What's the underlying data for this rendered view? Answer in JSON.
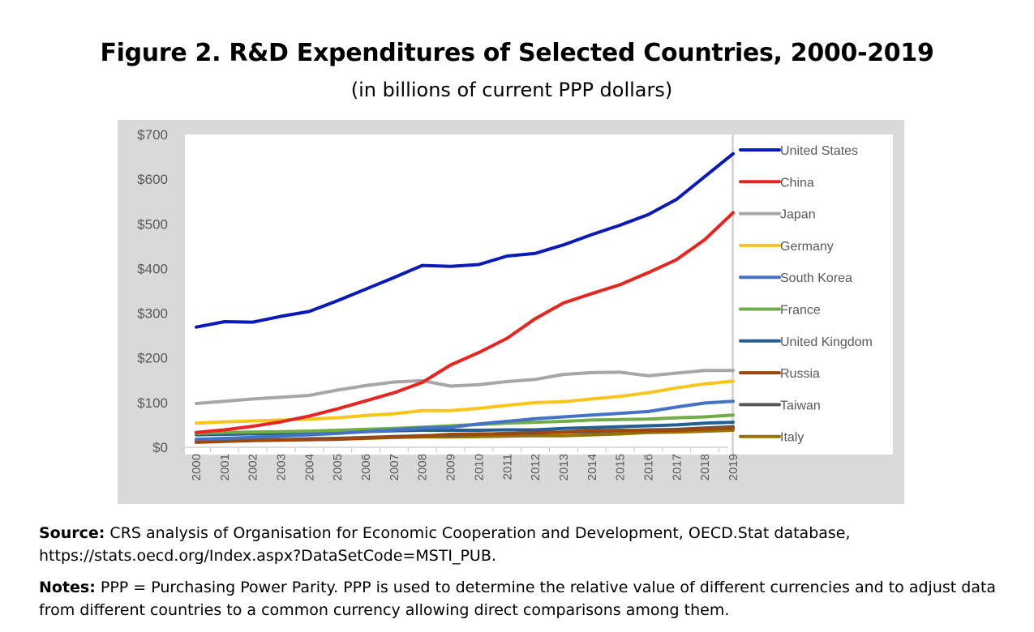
{
  "title": "Figure 2. R&D Expenditures of Selected Countries, 2000-2019",
  "subtitle": "(in billions of current PPP dollars)",
  "source": {
    "label": "Source:",
    "text": " CRS analysis of Organisation for Economic Cooperation and Development,  OECD.Stat database, https://stats.oecd.org/Index.aspx?DataSetCode=MSTI_PUB."
  },
  "notes": {
    "label": "Notes:",
    "text": " PPP = Purchasing Power Parity. PPP is used to determine the relative value of different currencies and to adjust data from different countries to a common currency allowing direct comparisons among them."
  },
  "chart_data": {
    "type": "line",
    "title": "",
    "xlabel": "",
    "ylabel": "",
    "x": [
      "2000",
      "2001",
      "2002",
      "2003",
      "2004",
      "2005",
      "2006",
      "2007",
      "2008",
      "2009",
      "2010",
      "2011",
      "2012",
      "2013",
      "2014",
      "2015",
      "2016",
      "2017",
      "2018",
      "2019"
    ],
    "ylim": [
      0,
      700
    ],
    "yticks": [
      0,
      100,
      200,
      300,
      400,
      500,
      600,
      700
    ],
    "ytick_labels": [
      "$0",
      "$100",
      "$200",
      "$300",
      "$400",
      "$500",
      "$600",
      "$700"
    ],
    "grid": false,
    "legend_position": "right",
    "series": [
      {
        "name": "United States",
        "color": "#0a1ab8",
        "values": [
          269,
          281,
          280,
          293,
          304,
          328,
          354,
          380,
          407,
          405,
          409,
          428,
          434,
          453,
          476,
          497,
          521,
          555,
          606,
          657
        ]
      },
      {
        "name": "China",
        "color": "#e8241e",
        "values": [
          33,
          39,
          47,
          57,
          70,
          86,
          104,
          122,
          145,
          184,
          212,
          244,
          288,
          323,
          344,
          364,
          391,
          420,
          465,
          525
        ]
      },
      {
        "name": "Japan",
        "color": "#a6a6a6",
        "values": [
          98,
          103,
          108,
          112,
          116,
          128,
          138,
          146,
          149,
          137,
          140,
          147,
          152,
          163,
          167,
          168,
          160,
          166,
          172,
          172
        ]
      },
      {
        "name": "Germany",
        "color": "#f9c51a",
        "values": [
          54,
          57,
          59,
          61,
          63,
          66,
          71,
          75,
          82,
          82,
          87,
          94,
          100,
          102,
          108,
          114,
          122,
          133,
          142,
          148
        ]
      },
      {
        "name": "South Korea",
        "color": "#4472c4",
        "values": [
          18,
          20,
          22,
          25,
          28,
          31,
          35,
          39,
          43,
          45,
          52,
          58,
          64,
          68,
          72,
          76,
          80,
          90,
          99,
          103
        ]
      },
      {
        "name": "France",
        "color": "#70ad47",
        "values": [
          31,
          33,
          34,
          35,
          36,
          38,
          40,
          42,
          45,
          48,
          51,
          54,
          56,
          58,
          61,
          62,
          63,
          66,
          68,
          72
        ]
      },
      {
        "name": "United Kingdom",
        "color": "#255e91",
        "values": [
          28,
          29,
          30,
          31,
          31,
          33,
          35,
          37,
          38,
          38,
          38,
          39,
          39,
          42,
          44,
          46,
          48,
          50,
          54,
          56
        ]
      },
      {
        "name": "Russia",
        "color": "#9e480e",
        "values": [
          11,
          13,
          15,
          16,
          17,
          18,
          21,
          23,
          25,
          29,
          30,
          30,
          33,
          34,
          37,
          38,
          37,
          38,
          41,
          43
        ]
      },
      {
        "name": "Taiwan",
        "color": "#595959",
        "values": [
          14,
          15,
          16,
          17,
          19,
          20,
          22,
          24,
          26,
          27,
          29,
          31,
          32,
          34,
          35,
          37,
          39,
          40,
          43,
          46
        ]
      },
      {
        "name": "Italy",
        "color": "#997300",
        "values": [
          15,
          16,
          16,
          17,
          17,
          18,
          20,
          22,
          23,
          23,
          24,
          25,
          26,
          26,
          28,
          30,
          33,
          34,
          36,
          38
        ]
      }
    ]
  }
}
